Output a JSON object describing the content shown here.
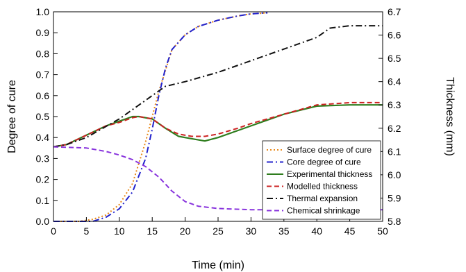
{
  "chart_data": {
    "type": "line",
    "xlabel": "Time (min)",
    "ylabel_left": "Degree of cure",
    "ylabel_right": "Thickness (mm)",
    "xlim": [
      0,
      50
    ],
    "ylim_left": [
      0,
      1.0
    ],
    "ylim_right": [
      5.8,
      6.7
    ],
    "x_ticks": [
      0,
      5,
      10,
      15,
      20,
      25,
      30,
      35,
      40,
      45,
      50
    ],
    "x_tick_labels": [
      "0",
      "5",
      "10",
      "15",
      "20",
      "25",
      "30",
      "35",
      "40",
      "45",
      "50"
    ],
    "y_left_ticks": [
      0,
      0.1,
      0.2,
      0.3,
      0.4,
      0.5,
      0.6,
      0.7,
      0.8,
      0.9,
      1.0
    ],
    "y_left_tick_labels": [
      "0.0",
      "0.1",
      "0.2",
      "0.3",
      "0.4",
      "0.5",
      "0.6",
      "0.7",
      "0.8",
      "0.9",
      "1.0"
    ],
    "y_right_ticks": [
      5.8,
      5.9,
      6.0,
      6.1,
      6.2,
      6.3,
      6.4,
      6.5,
      6.6,
      6.7
    ],
    "y_right_tick_labels": [
      "5.8",
      "5.9",
      "6.0",
      "6.1",
      "6.2",
      "6.3",
      "6.4",
      "6.5",
      "6.6",
      "6.7"
    ],
    "grid": false,
    "legend_position": "bottom-right",
    "series": [
      {
        "name": "Surface degree of cure",
        "axis": "left",
        "color": "#e8891a",
        "style": "dotted",
        "x": [
          0,
          4,
          6,
          8,
          10,
          12,
          14,
          15,
          16,
          17,
          18,
          20,
          22,
          25,
          28,
          30,
          32.5
        ],
        "y": [
          0,
          0,
          0.01,
          0.03,
          0.08,
          0.18,
          0.38,
          0.5,
          0.62,
          0.72,
          0.82,
          0.89,
          0.93,
          0.96,
          0.98,
          0.99,
          0.995
        ]
      },
      {
        "name": "Core degree of cure",
        "axis": "left",
        "color": "#2222cc",
        "style": "dashdot",
        "x": [
          0,
          6,
          8,
          10,
          12,
          14,
          15,
          16,
          17,
          18,
          20,
          22,
          25,
          28,
          30,
          32.5
        ],
        "y": [
          0,
          0,
          0.02,
          0.06,
          0.14,
          0.3,
          0.44,
          0.6,
          0.73,
          0.82,
          0.89,
          0.93,
          0.96,
          0.98,
          0.99,
          0.995
        ]
      },
      {
        "name": "Experimental thickness",
        "axis": "right",
        "color": "#2f7d1e",
        "style": "solid",
        "x": [
          0,
          2,
          5,
          8,
          10,
          12,
          13,
          15,
          17,
          19,
          21,
          23,
          25,
          28,
          30,
          35,
          40,
          45,
          50
        ],
        "y": [
          6.12,
          6.13,
          6.17,
          6.21,
          6.23,
          6.25,
          6.25,
          6.24,
          6.2,
          6.165,
          6.155,
          6.145,
          6.16,
          6.19,
          6.21,
          6.26,
          6.295,
          6.3,
          6.3
        ]
      },
      {
        "name": "Modelled thickness",
        "axis": "right",
        "color": "#cc2222",
        "style": "dashed",
        "x": [
          0,
          2,
          5,
          8,
          10,
          12,
          13,
          15,
          17,
          19,
          21,
          23,
          25,
          28,
          30,
          35,
          40,
          45,
          50
        ],
        "y": [
          6.12,
          6.13,
          6.17,
          6.21,
          6.225,
          6.245,
          6.25,
          6.24,
          6.2,
          6.175,
          6.165,
          6.165,
          6.175,
          6.2,
          6.22,
          6.26,
          6.3,
          6.31,
          6.31
        ]
      },
      {
        "name": "Thermal expansion",
        "axis": "right",
        "color": "#111111",
        "style": "dashdot",
        "x": [
          0,
          2,
          5,
          10,
          15,
          17,
          20,
          25,
          30,
          35,
          40,
          42,
          45,
          50
        ],
        "y": [
          6.12,
          6.13,
          6.16,
          6.24,
          6.34,
          6.38,
          6.4,
          6.44,
          6.49,
          6.54,
          6.59,
          6.63,
          6.64,
          6.64
        ]
      },
      {
        "name": "Chemical shrinkage",
        "axis": "right",
        "color": "#8833dd",
        "style": "dashed",
        "x": [
          0,
          5,
          8,
          10,
          12,
          14,
          16,
          18,
          20,
          22,
          25,
          30,
          35,
          40,
          50
        ],
        "y": [
          6.12,
          6.115,
          6.1,
          6.085,
          6.065,
          6.035,
          5.99,
          5.93,
          5.885,
          5.865,
          5.855,
          5.85,
          5.85,
          5.85,
          5.85
        ]
      }
    ]
  }
}
